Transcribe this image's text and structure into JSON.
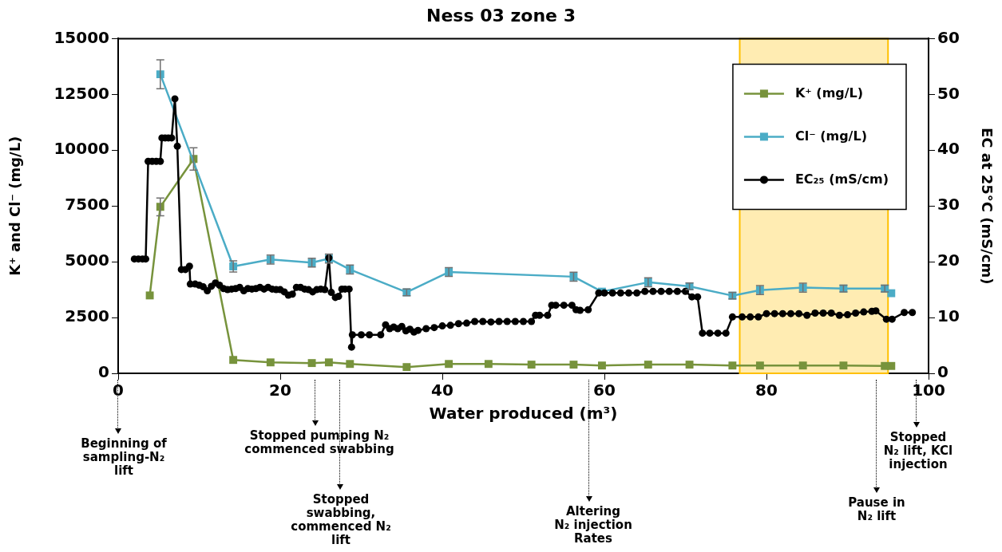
{
  "chart_data": {
    "type": "line",
    "title": "Ness 03 zone 3",
    "xlabel": "Water produced (m³)",
    "ylabel": "K⁺ and Cl⁻ (mg/L)",
    "y2label": "EC at 25°C (mS/cm)",
    "xlim": [
      0,
      100
    ],
    "xticks": [
      0,
      20,
      40,
      60,
      80,
      100
    ],
    "ylim": [
      0,
      15000
    ],
    "yticks": [
      0,
      2500,
      5000,
      7500,
      10000,
      12500,
      15000
    ],
    "y2lim": [
      0,
      60
    ],
    "y2ticks": [
      0,
      10,
      20,
      30,
      40,
      50,
      60
    ],
    "grid": false,
    "legend": "top right",
    "bands": [
      {
        "axis": "x",
        "from": 76.7,
        "to": 95,
        "color": "#ffc000"
      }
    ],
    "series": [
      {
        "name": "K⁺ (mg/L)",
        "color": "#77933c",
        "marker": "square",
        "x": [
          3.9,
          5.2,
          9.3,
          14.2,
          18.8,
          23.9,
          26.0,
          28.6,
          35.6,
          40.8,
          45.7,
          51.0,
          56.2,
          59.7,
          65.4,
          70.5,
          75.8,
          79.2,
          84.5,
          89.5,
          94.6,
          95.4
        ],
        "values": [
          3490,
          7460,
          9610,
          600,
          490,
          460,
          490,
          420,
          280,
          420,
          420,
          390,
          390,
          350,
          390,
          390,
          350,
          350,
          350,
          350,
          330,
          330
        ],
        "errors": [
          null,
          400,
          500,
          null,
          null,
          null,
          null,
          null,
          null,
          null,
          null,
          null,
          null,
          null,
          null,
          null,
          null,
          null,
          null,
          null,
          null,
          null
        ]
      },
      {
        "name": "Cl⁻ (mg/L)",
        "color": "#4bacc6",
        "marker": "square",
        "x": [
          5.2,
          14.2,
          18.8,
          23.9,
          26.0,
          28.6,
          35.6,
          40.8,
          56.2,
          59.7,
          65.4,
          70.5,
          75.8,
          79.2,
          84.5,
          89.5,
          94.6,
          95.4
        ],
        "values": [
          13400,
          4790,
          5100,
          4960,
          5140,
          4650,
          3630,
          4540,
          4330,
          3660,
          4080,
          3900,
          3480,
          3730,
          3840,
          3800,
          3800,
          3590
        ],
        "errors": [
          650,
          250,
          200,
          200,
          200,
          200,
          150,
          200,
          200,
          null,
          200,
          150,
          150,
          200,
          200,
          150,
          150,
          null
        ]
      },
      {
        "name": "EC₂₅ (mS/cm)",
        "color": "#000000",
        "marker": "circle",
        "axis": "y2",
        "x": [
          2.0,
          2.5,
          3.0,
          3.4,
          3.7,
          4.2,
          4.7,
          5.2,
          5.4,
          5.8,
          6.2,
          6.6,
          7.0,
          7.3,
          7.8,
          8.3,
          8.8,
          8.9,
          9.5,
          10,
          10.5,
          11,
          11.5,
          12,
          12.5,
          13,
          13.5,
          14,
          14.5,
          15,
          15.5,
          16,
          16.5,
          17,
          17.5,
          18,
          18.5,
          19,
          19.5,
          20,
          20.5,
          21,
          21.5,
          22,
          22.5,
          23,
          23.5,
          24,
          24.5,
          25,
          25.5,
          26.0,
          26.3,
          26.8,
          27.2,
          27.6,
          28.0,
          28.5,
          28.8,
          28.9,
          30,
          31,
          32.4,
          33,
          33.5,
          34,
          34.5,
          35,
          35.5,
          36,
          36.5,
          37,
          38,
          39,
          40,
          41,
          42,
          43,
          44,
          45,
          46,
          47,
          48,
          49,
          50,
          51,
          51.5,
          52,
          53,
          53.5,
          54,
          55,
          56,
          56.5,
          57,
          58,
          59.3,
          60,
          61,
          62,
          63,
          64,
          65,
          66,
          67,
          68,
          69,
          70,
          70.8,
          71.5,
          72.1,
          73,
          74,
          75,
          75.8,
          77,
          78,
          79,
          80,
          81,
          82,
          83,
          84,
          85,
          86,
          87,
          88,
          89,
          90,
          91,
          92,
          93,
          93.5,
          94.8,
          95.5,
          97,
          98
        ],
        "values": [
          20.5,
          20.5,
          20.5,
          20.5,
          38,
          38,
          38,
          38,
          42.2,
          42.2,
          42.2,
          42.2,
          49.2,
          40.7,
          18.6,
          18.6,
          19.2,
          16,
          16,
          15.8,
          15.5,
          14.8,
          15.6,
          16.2,
          15.8,
          15.2,
          15,
          15.1,
          15.2,
          15.4,
          14.8,
          15.2,
          15.1,
          15.2,
          15.4,
          15.1,
          15.4,
          15.1,
          15,
          15,
          14.6,
          14,
          14.2,
          15.4,
          15.4,
          15.1,
          15,
          14.6,
          15,
          15.1,
          15,
          20.7,
          14.5,
          13.6,
          13.8,
          15.1,
          15.1,
          15.1,
          4.7,
          6.9,
          6.9,
          6.9,
          6.9,
          8.7,
          8,
          8.3,
          8,
          8.4,
          7.6,
          7.9,
          7.4,
          7.7,
          8,
          8.2,
          8.5,
          8.6,
          8.9,
          9,
          9.3,
          9.3,
          9.2,
          9.3,
          9.3,
          9.3,
          9.3,
          9.3,
          10.4,
          10.4,
          10.4,
          12.2,
          12.2,
          12.2,
          12.2,
          11.4,
          11.3,
          11.4,
          14.4,
          14.4,
          14.4,
          14.4,
          14.4,
          14.4,
          14.7,
          14.7,
          14.7,
          14.7,
          14.7,
          14.7,
          13.7,
          13.7,
          7.2,
          7.2,
          7.2,
          7.2,
          10.1,
          10.1,
          10.1,
          10.1,
          10.7,
          10.7,
          10.7,
          10.7,
          10.7,
          10.4,
          10.8,
          10.8,
          10.8,
          10.4,
          10.5,
          10.8,
          11,
          11.1,
          11.2,
          9.7,
          9.7,
          10.9,
          10.9
        ]
      }
    ],
    "annotations": [
      "Beginning of\nsampling-N₂\nlift",
      "Stopped pumping N₂\ncommenced swabbing",
      "Stopped\nswabbing,\ncommenced N₂\nlift",
      "Altering\nN₂ injection\nRates",
      "Pause in\nN₂ lift",
      "Stopped\nN₂ lift, KCl\ninjection"
    ]
  }
}
